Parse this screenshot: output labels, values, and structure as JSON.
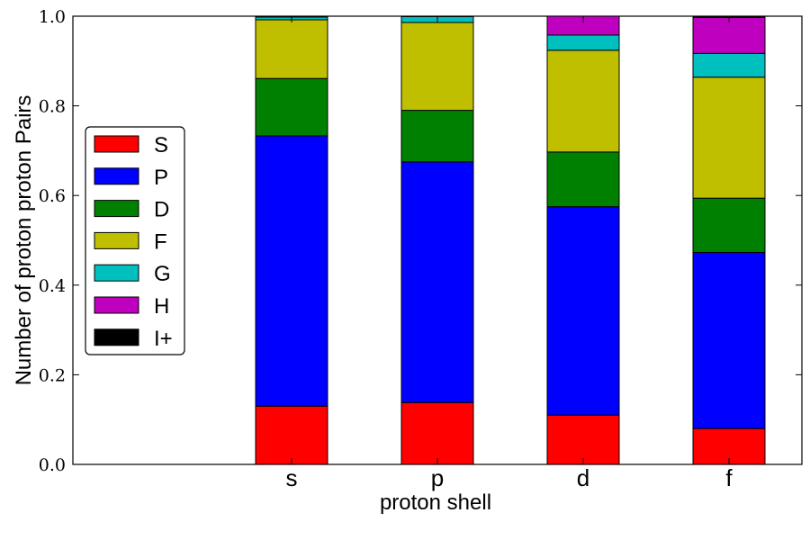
{
  "chart_data": {
    "type": "bar",
    "stacked": true,
    "categories": [
      "s",
      "p",
      "d",
      "f"
    ],
    "xlabel": "proton shell",
    "ylabel": "Number of proton proton Pairs",
    "ylim": [
      0.0,
      1.0
    ],
    "y_ticks": [
      "0.0",
      "0.2",
      "0.4",
      "0.6",
      "0.8",
      "1.0"
    ],
    "y_tick_values": [
      0.0,
      0.2,
      0.4,
      0.6,
      0.8,
      1.0
    ],
    "legend_position": "left",
    "series": [
      {
        "name": "S",
        "color": "#ff0000",
        "values": [
          0.13,
          0.138,
          0.11,
          0.08
        ]
      },
      {
        "name": "P",
        "color": "#0000ff",
        "values": [
          0.603,
          0.537,
          0.465,
          0.393
        ]
      },
      {
        "name": "D",
        "color": "#008000",
        "values": [
          0.128,
          0.115,
          0.122,
          0.121
        ]
      },
      {
        "name": "F",
        "color": "#bfbf00",
        "values": [
          0.131,
          0.196,
          0.227,
          0.27
        ]
      },
      {
        "name": "G",
        "color": "#00bfbf",
        "values": [
          0.006,
          0.013,
          0.034,
          0.053
        ]
      },
      {
        "name": "H",
        "color": "#bf00bf",
        "values": [
          0.001,
          0.001,
          0.042,
          0.08
        ]
      },
      {
        "name": "I+",
        "color": "#000000",
        "values": [
          0.001,
          0.0,
          0.0,
          0.003
        ]
      }
    ]
  }
}
